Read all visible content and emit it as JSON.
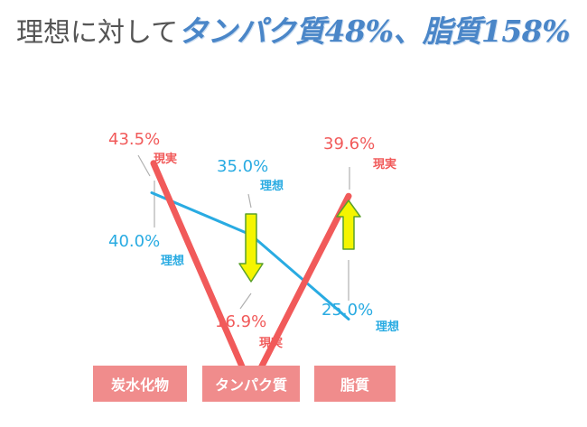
{
  "title": {
    "plain": "理想に対して",
    "highlight": "タンパク質48%、脂質158%"
  },
  "chart_data": {
    "type": "line",
    "categories": [
      "炭水化物",
      "タンパク質",
      "脂質"
    ],
    "ylim": [
      0,
      50
    ],
    "grid": false,
    "series": [
      {
        "name": "理想",
        "values": [
          40.0,
          35.0,
          25.0
        ],
        "color": "#29abe2"
      },
      {
        "name": "現実",
        "values": [
          43.5,
          16.9,
          39.6
        ],
        "color": "#f15a5a"
      }
    ],
    "labels": [
      {
        "series": 1,
        "index": 0,
        "value": "43.5%",
        "tag": "現実"
      },
      {
        "series": 0,
        "index": 0,
        "value": "40.0%",
        "tag": "理想"
      },
      {
        "series": 0,
        "index": 1,
        "value": "35.0%",
        "tag": "理想"
      },
      {
        "series": 1,
        "index": 1,
        "value": "16.9%",
        "tag": "現実"
      },
      {
        "series": 1,
        "index": 2,
        "value": "39.6%",
        "tag": "現実"
      },
      {
        "series": 0,
        "index": 2,
        "value": "25.0%",
        "tag": "理想"
      }
    ],
    "arrows": [
      {
        "index": 1,
        "direction": "down",
        "color": "#f5f500"
      },
      {
        "index": 2,
        "direction": "up",
        "color": "#f5f500"
      }
    ]
  }
}
